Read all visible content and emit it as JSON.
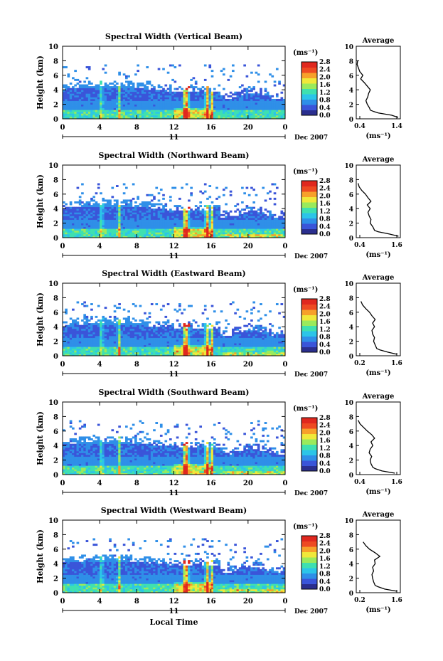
{
  "figure": {
    "shared_xlabel": "Local Time",
    "date_label": "Dec 2007",
    "day_label": "11",
    "colorbar_unit": "(ms⁻¹)",
    "colorbar_ticks": [
      "0.0",
      "0.4",
      "0.8",
      "1.2",
      "1.6",
      "2.0",
      "2.4",
      "2.8"
    ],
    "profile_title": "Average",
    "profile_xlabel": "(ms⁻¹)",
    "colormap": [
      "#2b2f8f",
      "#3a55d9",
      "#2f8fe8",
      "#2cc5e8",
      "#3fe0b0",
      "#9aea5c",
      "#f0e83a",
      "#f7a02a",
      "#ee4a22",
      "#e0281e"
    ]
  },
  "chart_data": [
    {
      "type": "heatmap",
      "title": "Spectral Width (Vertical Beam)",
      "ylabel": "Height (km)",
      "xlim": [
        0,
        24
      ],
      "ylim": [
        0,
        10
      ],
      "x_ticks": [
        "0",
        "4",
        "8",
        "12",
        "16",
        "20",
        "0"
      ],
      "y_ticks": [
        "0",
        "2",
        "4",
        "6",
        "8",
        "10"
      ],
      "clim": [
        0,
        2.8
      ],
      "profile": {
        "title": "Average",
        "xlim": [
          0.4,
          1.4
        ],
        "x_ticks": [
          "0.4",
          "1.4"
        ],
        "ylim": [
          0,
          10
        ],
        "height_km": [
          0.2,
          0.5,
          0.8,
          1.0,
          1.2,
          1.5,
          2.0,
          2.5,
          3.0,
          3.5,
          4.0,
          4.5,
          5.0,
          5.5,
          6.0,
          6.5,
          7.0,
          7.5,
          8.0
        ],
        "values": [
          1.35,
          1.2,
          0.9,
          0.8,
          0.72,
          0.7,
          0.65,
          0.62,
          0.66,
          0.68,
          0.72,
          0.65,
          0.58,
          0.5,
          0.55,
          0.48,
          0.45,
          0.42,
          0.43
        ]
      }
    },
    {
      "type": "heatmap",
      "title": "Spectral Width (Northward Beam)",
      "ylabel": "Height (km)",
      "xlim": [
        0,
        24
      ],
      "ylim": [
        0,
        10
      ],
      "x_ticks": [
        "0",
        "4",
        "8",
        "12",
        "16",
        "20",
        "0"
      ],
      "y_ticks": [
        "0",
        "2",
        "4",
        "6",
        "8",
        "10"
      ],
      "clim": [
        0,
        2.8
      ],
      "profile": {
        "title": "Average",
        "xlim": [
          0.4,
          1.6
        ],
        "x_ticks": [
          "0.4",
          "1.6"
        ],
        "ylim": [
          0,
          10
        ],
        "height_km": [
          0.2,
          0.5,
          0.8,
          1.0,
          1.5,
          2.0,
          2.5,
          3.0,
          3.5,
          4.0,
          4.5,
          5.0,
          5.5,
          6.0,
          6.5,
          7.0,
          7.5
        ],
        "values": [
          1.55,
          1.3,
          1.0,
          0.9,
          0.85,
          0.78,
          0.8,
          0.75,
          0.72,
          0.78,
          0.7,
          0.8,
          0.72,
          0.65,
          0.55,
          0.48,
          0.45
        ]
      }
    },
    {
      "type": "heatmap",
      "title": "Spectral Width (Eastward Beam)",
      "ylabel": "Height (km)",
      "xlim": [
        0,
        24
      ],
      "ylim": [
        0,
        10
      ],
      "x_ticks": [
        "0",
        "4",
        "8",
        "12",
        "16",
        "20",
        "0"
      ],
      "y_ticks": [
        "0",
        "2",
        "4",
        "6",
        "8",
        "10"
      ],
      "clim": [
        0,
        2.8
      ],
      "profile": {
        "title": "Average",
        "xlim": [
          0.2,
          1.6
        ],
        "x_ticks": [
          "0.2",
          "1.6"
        ],
        "ylim": [
          0,
          10
        ],
        "height_km": [
          0.2,
          0.5,
          0.8,
          1.0,
          1.5,
          2.0,
          2.5,
          3.0,
          3.5,
          4.0,
          4.5,
          5.0,
          5.5,
          6.0,
          6.5,
          7.0,
          7.5
        ],
        "values": [
          1.5,
          1.2,
          0.95,
          0.85,
          0.8,
          0.75,
          0.78,
          0.72,
          0.7,
          0.78,
          0.72,
          0.8,
          0.7,
          0.62,
          0.5,
          0.4,
          0.35
        ]
      }
    },
    {
      "type": "heatmap",
      "title": "Spectral Width (Southward Beam)",
      "ylabel": "Height (km)",
      "xlim": [
        0,
        24
      ],
      "ylim": [
        0,
        10
      ],
      "x_ticks": [
        "0",
        "4",
        "8",
        "12",
        "16",
        "20",
        "0"
      ],
      "y_ticks": [
        "0",
        "2",
        "4",
        "6",
        "8",
        "10"
      ],
      "clim": [
        0,
        2.8
      ],
      "profile": {
        "title": "Average",
        "xlim": [
          0.4,
          1.6
        ],
        "x_ticks": [
          "0.4",
          "1.6"
        ],
        "ylim": [
          0,
          10
        ],
        "height_km": [
          0.2,
          0.5,
          0.8,
          1.0,
          1.5,
          2.0,
          2.5,
          3.0,
          3.5,
          4.0,
          4.5,
          5.0,
          5.5,
          6.0,
          6.5,
          7.0,
          7.5
        ],
        "values": [
          1.45,
          1.1,
          0.92,
          0.85,
          0.8,
          0.78,
          0.82,
          0.75,
          0.78,
          0.85,
          0.8,
          0.9,
          0.82,
          0.7,
          0.6,
          0.5,
          0.45
        ]
      }
    },
    {
      "type": "heatmap",
      "title": "Spectral Width (Westward Beam)",
      "ylabel": "Height (km)",
      "xlim": [
        0,
        24
      ],
      "ylim": [
        0,
        10
      ],
      "x_ticks": [
        "0",
        "4",
        "8",
        "12",
        "16",
        "20",
        "0"
      ],
      "y_ticks": [
        "0",
        "2",
        "4",
        "6",
        "8",
        "10"
      ],
      "clim": [
        0,
        2.8
      ],
      "profile": {
        "title": "Average",
        "xlim": [
          0.2,
          1.6
        ],
        "x_ticks": [
          "0.2",
          "1.6"
        ],
        "ylim": [
          0,
          10
        ],
        "height_km": [
          0.2,
          0.5,
          0.8,
          1.0,
          1.5,
          2.0,
          2.5,
          3.0,
          3.5,
          4.0,
          4.5,
          5.0,
          5.5,
          6.0,
          6.5,
          7.0
        ],
        "values": [
          1.5,
          1.1,
          0.9,
          0.8,
          0.75,
          0.72,
          0.7,
          0.75,
          0.72,
          0.8,
          0.78,
          0.95,
          0.8,
          0.62,
          0.5,
          0.42
        ]
      }
    }
  ]
}
